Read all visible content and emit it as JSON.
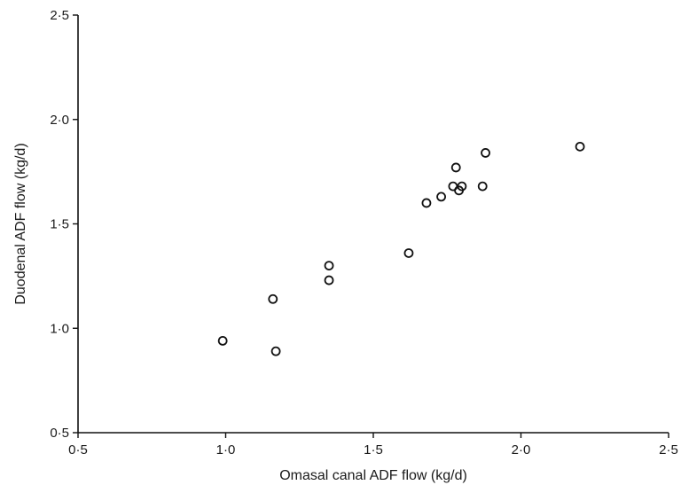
{
  "chart_data": {
    "type": "scatter",
    "title": "",
    "xlabel": "Omasal canal ADF flow (kg/d)",
    "ylabel": "Duodenal ADF flow (kg/d)",
    "xlim": [
      0.5,
      2.5
    ],
    "ylim": [
      0.5,
      2.5
    ],
    "xticks": [
      0.5,
      1.0,
      1.5,
      2.0,
      2.5
    ],
    "yticks": [
      0.5,
      1.0,
      1.5,
      2.0,
      2.5
    ],
    "xtick_labels": [
      "0·5",
      "1·0",
      "1·5",
      "2·0",
      "2·5"
    ],
    "ytick_labels": [
      "0·5",
      "1·0",
      "1·5",
      "2·0",
      "2·5"
    ],
    "grid": false,
    "legend": null,
    "marker": "open-circle",
    "points": [
      {
        "x": 0.99,
        "y": 0.94
      },
      {
        "x": 1.16,
        "y": 1.14
      },
      {
        "x": 1.17,
        "y": 0.89
      },
      {
        "x": 1.35,
        "y": 1.3
      },
      {
        "x": 1.35,
        "y": 1.23
      },
      {
        "x": 1.62,
        "y": 1.36
      },
      {
        "x": 1.68,
        "y": 1.6
      },
      {
        "x": 1.73,
        "y": 1.63
      },
      {
        "x": 1.77,
        "y": 1.68
      },
      {
        "x": 1.78,
        "y": 1.77
      },
      {
        "x": 1.79,
        "y": 1.66
      },
      {
        "x": 1.8,
        "y": 1.68
      },
      {
        "x": 1.87,
        "y": 1.68
      },
      {
        "x": 1.88,
        "y": 1.84
      },
      {
        "x": 2.2,
        "y": 1.87
      }
    ]
  }
}
